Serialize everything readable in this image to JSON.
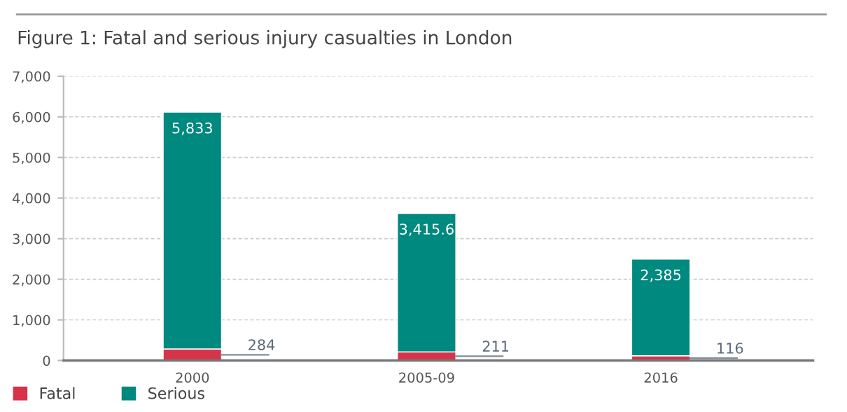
{
  "chart_data": {
    "type": "bar",
    "title": "Figure 1: Fatal and serious injury casualties in London",
    "categories": [
      "2000",
      "2005-09",
      "2016"
    ],
    "series": [
      {
        "name": "Fatal",
        "color": "#d7344a",
        "values": [
          284,
          211,
          116
        ],
        "value_labels": [
          "284",
          "211",
          "116"
        ]
      },
      {
        "name": "Serious",
        "color": "#00897f",
        "values": [
          5833,
          3415.6,
          2385
        ],
        "value_labels": [
          "5,833",
          "3,415.6",
          "2,385"
        ]
      }
    ],
    "stacked": true,
    "ylim": [
      0,
      7000
    ],
    "yticks": [
      0,
      {
        "value": 1000,
        "label": "1,000"
      },
      {
        "value": 2000,
        "label": "2,000"
      },
      {
        "value": 3000,
        "label": "3,000"
      },
      {
        "value": 4000,
        "label": "4,000"
      },
      {
        "value": 5000,
        "label": "5,000"
      },
      {
        "value": 6000,
        "label": "6,000"
      },
      {
        "value": 7000,
        "label": "7,000"
      }
    ],
    "grid": "y",
    "legend": "bottom left"
  }
}
